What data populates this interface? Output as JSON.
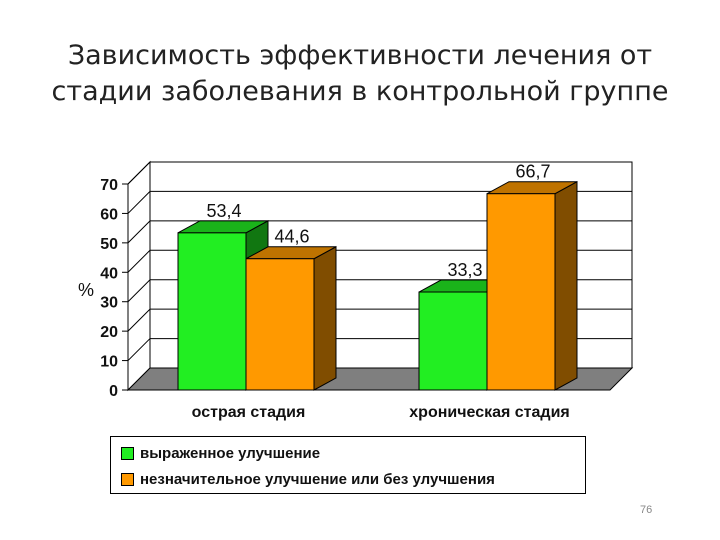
{
  "title": {
    "line1": "Зависимость эффективности лечения от",
    "line2": "стадии заболевания в контрольной группе"
  },
  "page_number": "76",
  "chart_data": {
    "type": "bar",
    "style": "3d-clustered",
    "categories": [
      "острая стадия",
      "хроническая стадия"
    ],
    "series": [
      {
        "name": "выраженное улучшение",
        "values": [
          53.4,
          33.3
        ],
        "color": "#22ee22"
      },
      {
        "name": "незначительное улучшение или без улучшения",
        "values": [
          44.6,
          66.7
        ],
        "color": "#ff9900"
      }
    ],
    "data_labels": [
      [
        "53,4",
        "33,3"
      ],
      [
        "44,6",
        "66,7"
      ]
    ],
    "ylabel": "%",
    "ylim": [
      0,
      70
    ],
    "yticks": [
      "0",
      "10",
      "20",
      "30",
      "40",
      "50",
      "60",
      "70"
    ],
    "grid": true,
    "legend": "bottom"
  }
}
